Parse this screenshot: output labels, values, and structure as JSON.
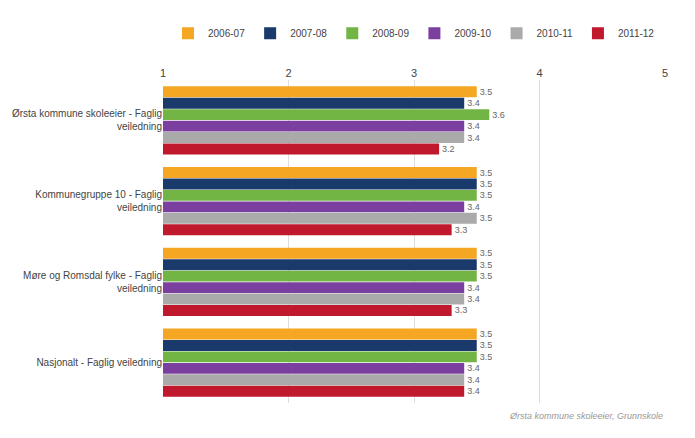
{
  "chart_data": {
    "type": "bar",
    "orientation": "horizontal",
    "categories": [
      "Ørsta kommune skoleeier - Faglig\nveiledning",
      "Kommunegruppe 10 - Faglig\nveiledning",
      "Møre og Romsdal fylke - Faglig\nveiledning",
      "Nasjonalt - Faglig veiledning"
    ],
    "series": [
      {
        "name": "2006-07",
        "color": "#F5A623",
        "values": [
          3.5,
          3.5,
          3.5,
          3.5
        ]
      },
      {
        "name": "2007-08",
        "color": "#1A3A6B",
        "values": [
          3.4,
          3.5,
          3.5,
          3.5
        ]
      },
      {
        "name": "2008-09",
        "color": "#72B544",
        "values": [
          3.6,
          3.5,
          3.5,
          3.5
        ]
      },
      {
        "name": "2009-10",
        "color": "#7B3FA0",
        "values": [
          3.4,
          3.4,
          3.4,
          3.4
        ]
      },
      {
        "name": "2010-11",
        "color": "#AAAAAA",
        "values": [
          3.4,
          3.5,
          3.4,
          3.4
        ]
      },
      {
        "name": "2011-12",
        "color": "#C0192E",
        "values": [
          3.2,
          3.3,
          3.3,
          3.4
        ]
      }
    ],
    "xlim": [
      1,
      5
    ],
    "xticks": [
      1,
      2,
      3,
      4,
      5
    ],
    "grid": true,
    "data_labels": true,
    "legend": "top",
    "annotations": [
      "Ørsta kommune skoleeier, Grunnskole"
    ]
  }
}
